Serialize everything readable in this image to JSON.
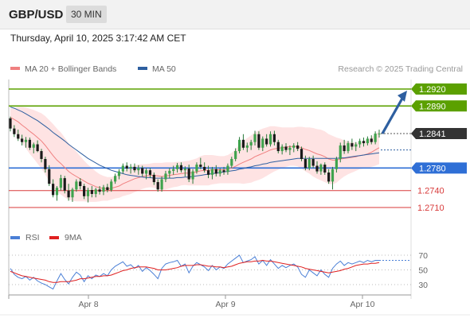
{
  "header": {
    "pair": "GBP/USD",
    "timeframe": "30 MIN"
  },
  "datetime": "Thursday, April 10, 2025 3:17:42 AM CET",
  "chart_data": {
    "type": "candlestick",
    "legend": [
      {
        "label": "MA 20 + Bollinger Bands",
        "color": "#f08080"
      },
      {
        "label": "MA 50",
        "color": "#2e5fa0"
      }
    ],
    "copyright": "Research © 2025 Trading Central",
    "x_ticks": [
      "Apr 8",
      "Apr 9",
      "Apr 10"
    ],
    "ylim": [
      1.27,
      1.2935
    ],
    "levels": [
      {
        "label": "1.2920",
        "value": 1.292,
        "kind": "resistance",
        "color": "#5ba000"
      },
      {
        "label": "1.2890",
        "value": 1.289,
        "kind": "resistance",
        "color": "#5ba000"
      },
      {
        "label": "1.2841",
        "value": 1.2841,
        "kind": "current",
        "color": "#333333"
      },
      {
        "label": "1.2780",
        "value": 1.278,
        "kind": "pivot",
        "color": "#2f6fd6"
      },
      {
        "label": "1.2740",
        "value": 1.274,
        "kind": "support",
        "color": "#d83a3a"
      },
      {
        "label": "1.2710",
        "value": 1.271,
        "kind": "support",
        "color": "#d83a3a"
      }
    ],
    "candles": [
      [
        1.2868,
        1.2871,
        1.2845,
        1.285
      ],
      [
        1.285,
        1.2856,
        1.2835,
        1.284
      ],
      [
        1.284,
        1.2848,
        1.2828,
        1.2832
      ],
      [
        1.2832,
        1.2839,
        1.282,
        1.2826
      ],
      [
        1.2826,
        1.2835,
        1.2816,
        1.283
      ],
      [
        1.283,
        1.2834,
        1.2812,
        1.2816
      ],
      [
        1.2816,
        1.2825,
        1.2806,
        1.2822
      ],
      [
        1.2822,
        1.2829,
        1.2808,
        1.281
      ],
      [
        1.281,
        1.2814,
        1.279,
        1.2796
      ],
      [
        1.2796,
        1.28,
        1.2772,
        1.2778
      ],
      [
        1.2778,
        1.2785,
        1.2748,
        1.2752
      ],
      [
        1.2752,
        1.276,
        1.2728,
        1.2732
      ],
      [
        1.2732,
        1.2748,
        1.2722,
        1.2745
      ],
      [
        1.2745,
        1.2768,
        1.274,
        1.2762
      ],
      [
        1.2762,
        1.2766,
        1.2735,
        1.274
      ],
      [
        1.274,
        1.2752,
        1.2722,
        1.2728
      ],
      [
        1.2728,
        1.2745,
        1.272,
        1.2742
      ],
      [
        1.2742,
        1.276,
        1.2738,
        1.2756
      ],
      [
        1.2756,
        1.2762,
        1.2742,
        1.2748
      ],
      [
        1.2748,
        1.2752,
        1.2725,
        1.273
      ],
      [
        1.273,
        1.2745,
        1.2719,
        1.2741
      ],
      [
        1.2741,
        1.2748,
        1.2728,
        1.2734
      ],
      [
        1.2734,
        1.2745,
        1.2728,
        1.2742
      ],
      [
        1.2742,
        1.2748,
        1.2733,
        1.2738
      ],
      [
        1.2738,
        1.275,
        1.2732,
        1.2746
      ],
      [
        1.2746,
        1.2752,
        1.2737,
        1.2741
      ],
      [
        1.2741,
        1.276,
        1.2738,
        1.2756
      ],
      [
        1.2756,
        1.277,
        1.2752,
        1.2766
      ],
      [
        1.2766,
        1.2778,
        1.276,
        1.2774
      ],
      [
        1.2774,
        1.2788,
        1.277,
        1.2784
      ],
      [
        1.2784,
        1.279,
        1.2774,
        1.2779
      ],
      [
        1.2779,
        1.2787,
        1.277,
        1.2782
      ],
      [
        1.2782,
        1.2788,
        1.2772,
        1.2776
      ],
      [
        1.2776,
        1.2785,
        1.2768,
        1.278
      ],
      [
        1.278,
        1.2784,
        1.2765,
        1.277
      ],
      [
        1.277,
        1.278,
        1.276,
        1.2776
      ],
      [
        1.2776,
        1.278,
        1.2762,
        1.2768
      ],
      [
        1.2768,
        1.2772,
        1.275,
        1.2755
      ],
      [
        1.2755,
        1.276,
        1.2738,
        1.2742
      ],
      [
        1.2742,
        1.2765,
        1.2738,
        1.276
      ],
      [
        1.276,
        1.2775,
        1.2755,
        1.277
      ],
      [
        1.277,
        1.278,
        1.2762,
        1.2775
      ],
      [
        1.2775,
        1.2784,
        1.2768,
        1.2778
      ],
      [
        1.2778,
        1.2789,
        1.2772,
        1.2785
      ],
      [
        1.2785,
        1.279,
        1.2772,
        1.2776
      ],
      [
        1.2776,
        1.2783,
        1.2765,
        1.2779
      ],
      [
        1.2779,
        1.2786,
        1.2755,
        1.276
      ],
      [
        1.276,
        1.2778,
        1.2752,
        1.2774
      ],
      [
        1.2774,
        1.279,
        1.277,
        1.2786
      ],
      [
        1.2786,
        1.2798,
        1.2778,
        1.2782
      ],
      [
        1.2782,
        1.279,
        1.2772,
        1.2776
      ],
      [
        1.2776,
        1.2784,
        1.2762,
        1.2768
      ],
      [
        1.2768,
        1.2782,
        1.276,
        1.2778
      ],
      [
        1.2778,
        1.2785,
        1.2765,
        1.277
      ],
      [
        1.277,
        1.278,
        1.2765,
        1.2776
      ],
      [
        1.2776,
        1.2782,
        1.2768,
        1.2773
      ],
      [
        1.2773,
        1.2788,
        1.2768,
        1.2784
      ],
      [
        1.2784,
        1.28,
        1.278,
        1.2796
      ],
      [
        1.2796,
        1.2815,
        1.2792,
        1.281
      ],
      [
        1.281,
        1.2835,
        1.2806,
        1.283
      ],
      [
        1.283,
        1.284,
        1.2812,
        1.2816
      ],
      [
        1.2816,
        1.2825,
        1.2808,
        1.282
      ],
      [
        1.282,
        1.283,
        1.2812,
        1.2826
      ],
      [
        1.2826,
        1.2846,
        1.282,
        1.284
      ],
      [
        1.284,
        1.2845,
        1.2812,
        1.2816
      ],
      [
        1.2816,
        1.2836,
        1.281,
        1.2832
      ],
      [
        1.2832,
        1.284,
        1.2818,
        1.2822
      ],
      [
        1.2822,
        1.2845,
        1.2818,
        1.284
      ],
      [
        1.284,
        1.2846,
        1.282,
        1.2826
      ],
      [
        1.2826,
        1.283,
        1.2806,
        1.281
      ],
      [
        1.281,
        1.2822,
        1.2804,
        1.2818
      ],
      [
        1.2818,
        1.2824,
        1.2808,
        1.2812
      ],
      [
        1.2812,
        1.282,
        1.2803,
        1.2816
      ],
      [
        1.2816,
        1.2824,
        1.2808,
        1.282
      ],
      [
        1.282,
        1.2826,
        1.281,
        1.2814
      ],
      [
        1.2814,
        1.2818,
        1.2792,
        1.2796
      ],
      [
        1.2796,
        1.2802,
        1.2776,
        1.278
      ],
      [
        1.278,
        1.28,
        1.2776,
        1.2796
      ],
      [
        1.2796,
        1.2802,
        1.278,
        1.2784
      ],
      [
        1.2784,
        1.2792,
        1.277,
        1.2774
      ],
      [
        1.2774,
        1.2788,
        1.2768,
        1.2786
      ],
      [
        1.2786,
        1.279,
        1.2768,
        1.2772
      ],
      [
        1.2772,
        1.2778,
        1.2752,
        1.2756
      ],
      [
        1.2756,
        1.2782,
        1.2742,
        1.2778
      ],
      [
        1.2778,
        1.28,
        1.2772,
        1.2796
      ],
      [
        1.2796,
        1.2825,
        1.279,
        1.282
      ],
      [
        1.282,
        1.283,
        1.2805,
        1.281
      ],
      [
        1.281,
        1.2828,
        1.2806,
        1.2824
      ],
      [
        1.2824,
        1.2832,
        1.2812,
        1.2818
      ],
      [
        1.2818,
        1.2826,
        1.281,
        1.2822
      ],
      [
        1.2822,
        1.2832,
        1.2816,
        1.2828
      ],
      [
        1.2828,
        1.2834,
        1.2818,
        1.2824
      ],
      [
        1.2824,
        1.2836,
        1.282,
        1.2832
      ],
      [
        1.2832,
        1.2838,
        1.2822,
        1.2826
      ],
      [
        1.2826,
        1.2845,
        1.2822,
        1.2841
      ],
      [
        1.2841,
        1.2848,
        1.2834,
        1.2841
      ]
    ],
    "ma20": [
      1.287,
      1.2866,
      1.2862,
      1.2856,
      1.2851,
      1.2845,
      1.284,
      1.2834,
      1.2828,
      1.282,
      1.2811,
      1.2802,
      1.2794,
      1.2788,
      1.2781,
      1.2774,
      1.2769,
      1.2765,
      1.2761,
      1.2757,
      1.2753,
      1.275,
      1.2747,
      1.2745,
      1.2744,
      1.2743,
      1.2744,
      1.2746,
      1.2748,
      1.2752,
      1.2755,
      1.2758,
      1.2761,
      1.2763,
      1.2765,
      1.2766,
      1.2767,
      1.2767,
      1.2766,
      1.2765,
      1.2766,
      1.2767,
      1.2768,
      1.2769,
      1.277,
      1.2771,
      1.2771,
      1.2772,
      1.2773,
      1.2775,
      1.2776,
      1.2776,
      1.2777,
      1.2777,
      1.2777,
      1.2777,
      1.2778,
      1.278,
      1.2783,
      1.2787,
      1.279,
      1.2793,
      1.2796,
      1.28,
      1.2803,
      1.2806,
      1.2809,
      1.2812,
      1.2814,
      1.2815,
      1.2816,
      1.2817,
      1.2818,
      1.2818,
      1.2818,
      1.2816,
      1.2813,
      1.2811,
      1.2808,
      1.2805,
      1.2803,
      1.28,
      1.2796,
      1.2794,
      1.2794,
      1.2796,
      1.2797,
      1.2798,
      1.2799,
      1.28,
      1.2802,
      1.2803,
      1.2805,
      1.2808,
      1.2812,
      1.2816
    ],
    "ma50": [
      1.2888,
      1.2886,
      1.2883,
      1.288,
      1.2876,
      1.2872,
      1.2868,
      1.2864,
      1.2859,
      1.2854,
      1.2849,
      1.2843,
      1.2838,
      1.2833,
      1.2828,
      1.2822,
      1.2817,
      1.2812,
      1.2807,
      1.2802,
      1.2797,
      1.2793,
      1.2789,
      1.2785,
      1.2782,
      1.2779,
      1.2776,
      1.2774,
      1.2772,
      1.277,
      1.2768,
      1.2767,
      1.2766,
      1.2765,
      1.2764,
      1.2763,
      1.2763,
      1.2762,
      1.2762,
      1.2762,
      1.2762,
      1.2762,
      1.2762,
      1.2763,
      1.2763,
      1.2764,
      1.2764,
      1.2765,
      1.2766,
      1.2767,
      1.2768,
      1.2769,
      1.277,
      1.2771,
      1.2772,
      1.2773,
      1.2774,
      1.2775,
      1.2776,
      1.2778,
      1.2779,
      1.2781,
      1.2782,
      1.2784,
      1.2785,
      1.2787,
      1.2788,
      1.279,
      1.2791,
      1.2792,
      1.2793,
      1.2794,
      1.2795,
      1.2796,
      1.2797,
      1.2797,
      1.2797,
      1.2797,
      1.2797,
      1.2797,
      1.2797,
      1.2797,
      1.2797,
      1.2797,
      1.2797,
      1.2798,
      1.2798,
      1.2799,
      1.28,
      1.2801,
      1.2802,
      1.2803,
      1.2804,
      1.2805,
      1.2806,
      1.2807
    ],
    "bb_width": [
      0.0015,
      0.002,
      0.0026,
      0.0032,
      0.0036,
      0.004,
      0.0043,
      0.0046,
      0.0049,
      0.0052,
      0.0054,
      0.0056,
      0.0056,
      0.0055,
      0.0053,
      0.005,
      0.0047,
      0.0044,
      0.004,
      0.0036,
      0.0033,
      0.003,
      0.0027,
      0.0024,
      0.0022,
      0.0021,
      0.002,
      0.002,
      0.0021,
      0.0022,
      0.0023,
      0.0024,
      0.0024,
      0.0023,
      0.0022,
      0.0021,
      0.0021,
      0.0022,
      0.0023,
      0.0024,
      0.0024,
      0.0023,
      0.0022,
      0.0022,
      0.0021,
      0.0021,
      0.0022,
      0.0023,
      0.0024,
      0.0026,
      0.0027,
      0.0027,
      0.0026,
      0.0025,
      0.0024,
      0.0024,
      0.0025,
      0.0027,
      0.003,
      0.0034,
      0.0038,
      0.004,
      0.0042,
      0.0043,
      0.0044,
      0.0044,
      0.0043,
      0.0042,
      0.004,
      0.0038,
      0.0036,
      0.0035,
      0.0034,
      0.0034,
      0.0035,
      0.0037,
      0.0039,
      0.0041,
      0.0043,
      0.0044,
      0.0045,
      0.0045,
      0.0044,
      0.0043,
      0.004,
      0.0036,
      0.0032,
      0.0029,
      0.0027,
      0.0025,
      0.0024,
      0.0024,
      0.0025,
      0.0026,
      0.0028,
      0.0029
    ]
  },
  "rsi": {
    "legend": [
      {
        "label": "RSI",
        "color": "#4a7fd6"
      },
      {
        "label": "9MA",
        "color": "#e02020"
      }
    ],
    "levels": [
      70,
      50,
      30
    ],
    "ylim": [
      20,
      80
    ],
    "rsi": [
      52,
      44,
      40,
      38,
      41,
      36,
      40,
      35,
      32,
      30,
      27,
      24,
      35,
      45,
      37,
      31,
      40,
      47,
      43,
      34,
      42,
      38,
      43,
      41,
      45,
      42,
      50,
      55,
      58,
      61,
      55,
      57,
      52,
      56,
      48,
      53,
      49,
      44,
      38,
      52,
      58,
      60,
      61,
      63,
      55,
      58,
      46,
      55,
      60,
      57,
      54,
      49,
      56,
      50,
      54,
      52,
      58,
      62,
      66,
      70,
      60,
      62,
      64,
      68,
      58,
      63,
      56,
      64,
      58,
      52,
      56,
      53,
      56,
      58,
      54,
      44,
      40,
      50,
      46,
      42,
      50,
      44,
      40,
      52,
      58,
      62,
      56,
      60,
      58,
      60,
      62,
      60,
      63,
      61,
      63,
      63
    ],
    "ma9": [
      48,
      46,
      44,
      42,
      41,
      40,
      39,
      38,
      37,
      36,
      34,
      33,
      33,
      34,
      34,
      34,
      35,
      36,
      38,
      38,
      39,
      40,
      41,
      41,
      42,
      42,
      43,
      45,
      47,
      49,
      50,
      52,
      53,
      54,
      54,
      54,
      53,
      52,
      50,
      50,
      50,
      51,
      52,
      53,
      55,
      56,
      56,
      56,
      57,
      57,
      56,
      55,
      55,
      54,
      54,
      53,
      54,
      55,
      57,
      59,
      60,
      61,
      61,
      62,
      62,
      63,
      62,
      62,
      61,
      60,
      59,
      58,
      57,
      56,
      55,
      54,
      52,
      51,
      50,
      49,
      48,
      47,
      46,
      47,
      48,
      49,
      51,
      52,
      54,
      56,
      57,
      58,
      58,
      59,
      59,
      60
    ]
  }
}
